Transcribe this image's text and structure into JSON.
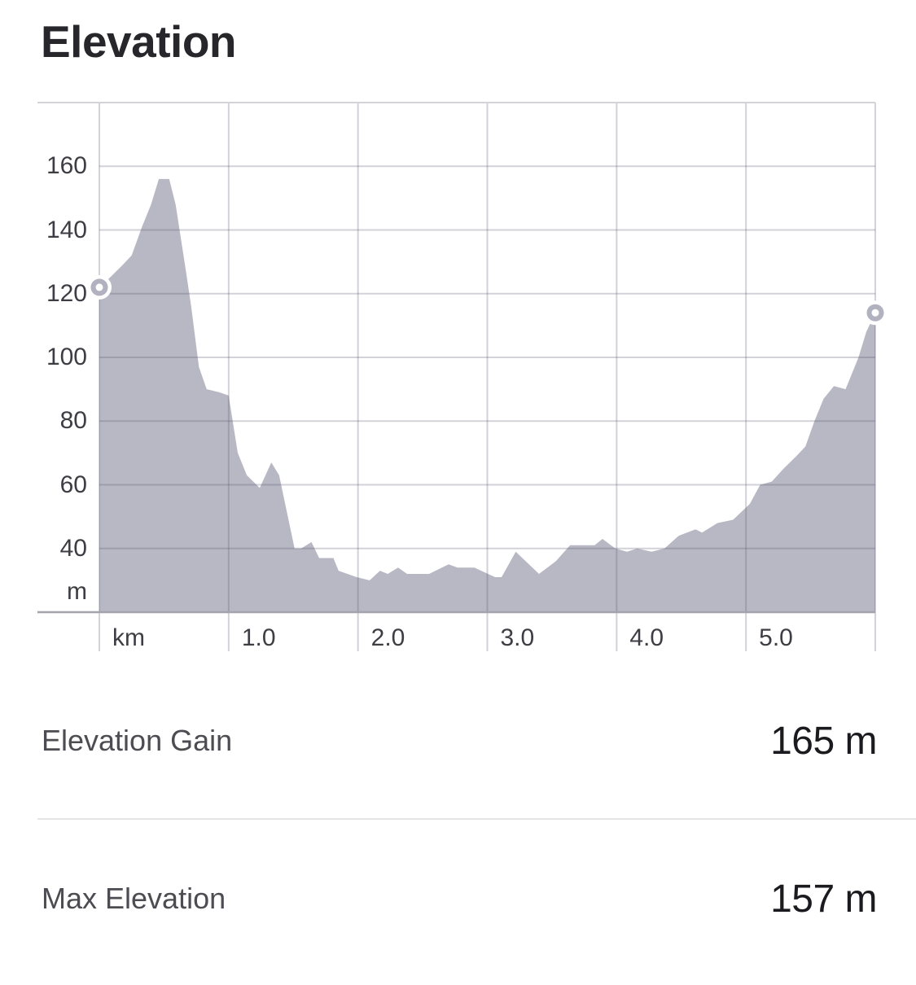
{
  "title": "Elevation",
  "chart_data": {
    "type": "area",
    "title": "Elevation",
    "x_unit": "km",
    "y_unit": "m",
    "xlim": [
      0,
      6
    ],
    "ylim": [
      20,
      180
    ],
    "grid": true,
    "legend": "none",
    "x_gridlines_km": [
      0,
      1,
      2,
      3,
      4,
      5,
      6
    ],
    "y_gridlines_m": [
      40,
      60,
      80,
      100,
      120,
      140,
      160
    ],
    "x_tick_labels": [
      {
        "value": 0,
        "label": "km"
      },
      {
        "value": 1,
        "label": "1.0"
      },
      {
        "value": 2,
        "label": "2.0"
      },
      {
        "value": 3,
        "label": "3.0"
      },
      {
        "value": 4,
        "label": "4.0"
      },
      {
        "value": 5,
        "label": "5.0"
      }
    ],
    "y_tick_labels": [
      {
        "value": 160,
        "label": "160"
      },
      {
        "value": 140,
        "label": "140"
      },
      {
        "value": 120,
        "label": "120"
      },
      {
        "value": 100,
        "label": "100"
      },
      {
        "value": 80,
        "label": "80"
      },
      {
        "value": 60,
        "label": "60"
      },
      {
        "value": 40,
        "label": "40"
      },
      {
        "value": 26.5,
        "label": "m"
      }
    ],
    "profile_points_km_m": [
      [
        0.0,
        122
      ],
      [
        0.08,
        125
      ],
      [
        0.18,
        129
      ],
      [
        0.25,
        132
      ],
      [
        0.33,
        141
      ],
      [
        0.4,
        148
      ],
      [
        0.46,
        156
      ],
      [
        0.54,
        156
      ],
      [
        0.59,
        148
      ],
      [
        0.67,
        127
      ],
      [
        0.71,
        116
      ],
      [
        0.77,
        97
      ],
      [
        0.83,
        90
      ],
      [
        0.93,
        89
      ],
      [
        1.0,
        88
      ],
      [
        1.07,
        70
      ],
      [
        1.14,
        63
      ],
      [
        1.24,
        59
      ],
      [
        1.33,
        67
      ],
      [
        1.39,
        63
      ],
      [
        1.51,
        40
      ],
      [
        1.56,
        40
      ],
      [
        1.64,
        42
      ],
      [
        1.7,
        37
      ],
      [
        1.81,
        37
      ],
      [
        1.85,
        33
      ],
      [
        1.99,
        31
      ],
      [
        2.09,
        30
      ],
      [
        2.17,
        33
      ],
      [
        2.23,
        32
      ],
      [
        2.31,
        34
      ],
      [
        2.38,
        32
      ],
      [
        2.55,
        32
      ],
      [
        2.7,
        35
      ],
      [
        2.77,
        34
      ],
      [
        2.9,
        34
      ],
      [
        3.06,
        31
      ],
      [
        3.11,
        31
      ],
      [
        3.22,
        39
      ],
      [
        3.4,
        32
      ],
      [
        3.53,
        36
      ],
      [
        3.64,
        41
      ],
      [
        3.83,
        41
      ],
      [
        3.89,
        43
      ],
      [
        3.99,
        40
      ],
      [
        4.08,
        39
      ],
      [
        4.16,
        40
      ],
      [
        4.27,
        39
      ],
      [
        4.37,
        40
      ],
      [
        4.48,
        44
      ],
      [
        4.61,
        46
      ],
      [
        4.66,
        45
      ],
      [
        4.78,
        48
      ],
      [
        4.9,
        49
      ],
      [
        5.03,
        54
      ],
      [
        5.11,
        60
      ],
      [
        5.2,
        61
      ],
      [
        5.29,
        65
      ],
      [
        5.39,
        69
      ],
      [
        5.46,
        72
      ],
      [
        5.53,
        80
      ],
      [
        5.6,
        87
      ],
      [
        5.68,
        91
      ],
      [
        5.77,
        90
      ],
      [
        5.87,
        100
      ],
      [
        5.93,
        108
      ],
      [
        6.0,
        114
      ]
    ],
    "start_marker": {
      "km": 0,
      "m": 122
    },
    "end_marker": {
      "km": 6.0,
      "m": 114
    }
  },
  "colors": {
    "area_fill": "#b8b8c4",
    "marker_ring": "#b1b1bf",
    "marker_hole": "#ffffff",
    "gridline": "rgba(82,82,104,0.26)",
    "top_border": "#d4d4d8",
    "bottom_axis": "#a3a3ae"
  },
  "stats": [
    {
      "label": "Elevation Gain",
      "value": "165 m"
    },
    {
      "label": "Max Elevation",
      "value": "157 m"
    }
  ]
}
